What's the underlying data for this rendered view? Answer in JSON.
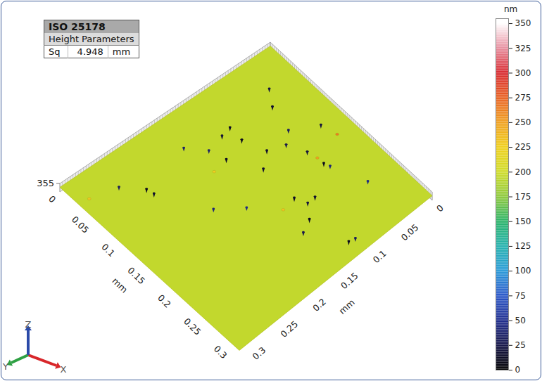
{
  "chart_data": {
    "type": "surface3d",
    "parameters_table": {
      "header": "ISO 25178",
      "subheader": "Height Parameters",
      "rows": [
        {
          "name": "Sq",
          "value": 4.948,
          "unit": "mm"
        }
      ]
    },
    "x_label": "mm",
    "y_label": "mm",
    "xlim": [
      0,
      0.32
    ],
    "xticks": [
      0,
      0.05,
      0.1,
      0.15,
      0.2,
      0.25,
      0.3
    ],
    "ylim": [
      0,
      0.32
    ],
    "yticks": [
      0,
      0.05,
      0.1,
      0.15,
      0.2,
      0.25,
      0.3
    ],
    "zlim": [
      0,
      355
    ],
    "zticks": [
      355
    ],
    "base_height": 195,
    "features": [
      {
        "x": 0.0752,
        "y": 0.0557,
        "z": 15
      },
      {
        "x": 0.138,
        "y": 0.0303,
        "z": 20
      },
      {
        "x": 0.0647,
        "y": 0.113,
        "z": 12
      },
      {
        "x": 0.1167,
        "y": 0.0641,
        "z": 30
      },
      {
        "x": 0.0681,
        "y": 0.128,
        "z": 18
      },
      {
        "x": 0.0889,
        "y": 0.1144,
        "z": 10
      },
      {
        "x": 0.1318,
        "y": 0.08,
        "z": 25
      },
      {
        "x": 0.1224,
        "y": 0.1027,
        "z": 15
      },
      {
        "x": 0.0744,
        "y": 0.1536,
        "z": 35
      },
      {
        "x": 0.0989,
        "y": 0.1467,
        "z": 12
      },
      {
        "x": 0.158,
        "y": 0.0681,
        "z": 20
      },
      {
        "x": 0.1855,
        "y": 0.0645,
        "z": 10
      },
      {
        "x": 0.1406,
        "y": 0.1232,
        "z": 15
      },
      {
        "x": 0.1942,
        "y": 0.0616,
        "z": 40
      },
      {
        "x": 0.0688,
        "y": 0.2455,
        "z": 10
      },
      {
        "x": 0.0798,
        "y": 0.2433,
        "z": 15
      },
      {
        "x": 0.0448,
        "y": 0.2677,
        "z": 30
      },
      {
        "x": 0.2,
        "y": 0.1239,
        "z": 12
      },
      {
        "x": 0.2172,
        "y": 0.1168,
        "z": 20
      },
      {
        "x": 0.2167,
        "y": 0.1046,
        "z": 15
      },
      {
        "x": 0.237,
        "y": 0.1309,
        "z": 10
      },
      {
        "x": 0.2468,
        "y": 0.1492,
        "z": 25
      },
      {
        "x": 0.2961,
        "y": 0.1176,
        "z": 10
      },
      {
        "x": 0.2985,
        "y": 0.1087,
        "z": 30
      },
      {
        "x": 0.171,
        "y": 0.1754,
        "z": 45
      },
      {
        "x": 0.1452,
        "y": 0.2059,
        "z": 40
      },
      {
        "x": 0.0513,
        "y": 0.1733,
        "z": 35
      },
      {
        "x": 0.245,
        "y": 0.0429,
        "z": 45
      },
      {
        "x": 0.0511,
        "y": 0.0414,
        "z": 20
      },
      {
        "x": 0.175,
        "y": 0.0661,
        "z": 250
      },
      {
        "x": 0.1647,
        "y": 0.0261,
        "z": 265
      },
      {
        "x": 0.0359,
        "y": 0.3058,
        "z": 230
      },
      {
        "x": 0.104,
        "y": 0.17,
        "z": 225
      },
      {
        "x": 0.2049,
        "y": 0.1458,
        "z": 230
      }
    ],
    "colorbar": {
      "label": "nm",
      "range": [
        0,
        355
      ],
      "ticks": [
        0,
        25,
        50,
        75,
        100,
        125,
        150,
        175,
        200,
        225,
        250,
        275,
        300,
        325,
        350
      ],
      "colors": [
        "#000000",
        "#1b1b4c",
        "#22308f",
        "#2a56c8",
        "#2a9ad8",
        "#2bb3b0",
        "#2bb36a",
        "#8cc83a",
        "#cfdc2a",
        "#f0d020",
        "#f0a020",
        "#e86020",
        "#d82a30",
        "#e890a0",
        "#ffffff"
      ]
    },
    "axis_triad": [
      "X",
      "Y",
      "Z"
    ]
  }
}
